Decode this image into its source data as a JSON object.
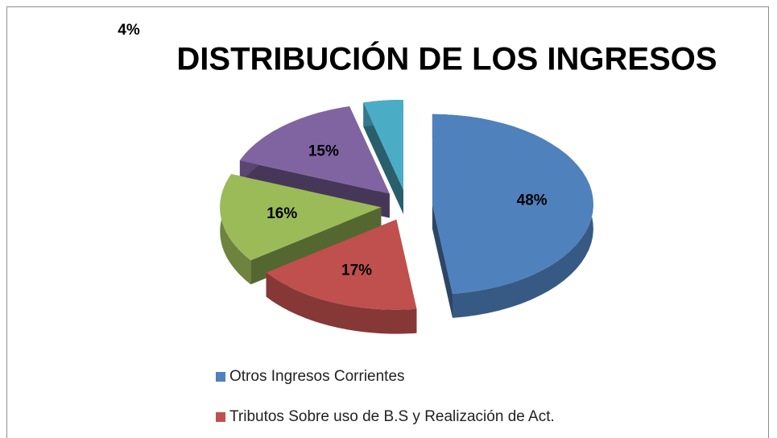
{
  "chart_data": {
    "type": "pie",
    "title": "DISTRIBUCIÓN DE LOS INGRESOS",
    "categories": [
      "Otros Ingresos Corrientes",
      "Tributos Sobre uso de B.S y Realización de Act.",
      null,
      null,
      null
    ],
    "values": [
      48,
      17,
      16,
      15,
      4
    ],
    "value_labels": [
      "48%",
      "17%",
      "16%",
      "15%",
      "4%"
    ],
    "colors": [
      "#4f81bd",
      "#c0504d",
      "#9bbb59",
      "#8064a2",
      "#4bacc6"
    ],
    "legend": "bottom"
  }
}
